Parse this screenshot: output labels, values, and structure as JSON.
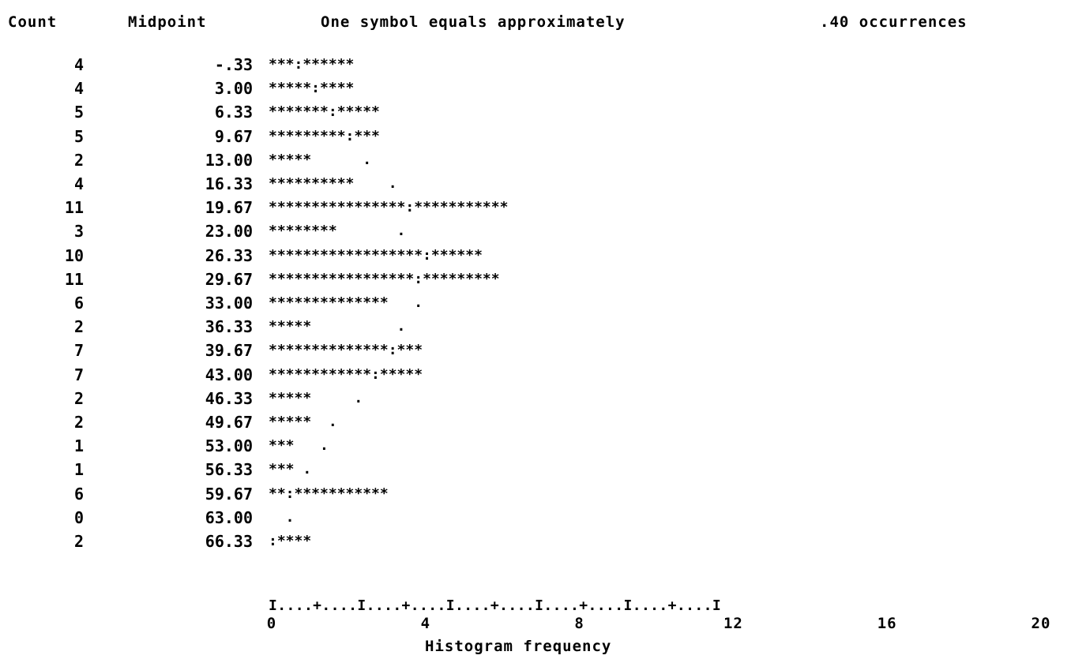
{
  "header": {
    "count_label": "Count",
    "midpoint_label": "Midpoint",
    "scale_text": "One symbol equals approximately",
    "scale_value": ".40 occurrences"
  },
  "chart_data": {
    "type": "bar",
    "orientation": "horizontal",
    "xlabel": "Histogram frequency",
    "xlim": [
      0,
      20
    ],
    "x_ticks": [
      "0",
      "4",
      "8",
      "12",
      "16",
      "20"
    ],
    "axis_text": "I....+....I....+....I....+....I....+....I....+....I",
    "categories": [
      "-.33",
      "3.00",
      "6.33",
      "9.67",
      "13.00",
      "16.33",
      "19.67",
      "23.00",
      "26.33",
      "29.67",
      "33.00",
      "36.33",
      "39.67",
      "43.00",
      "46.33",
      "49.67",
      "53.00",
      "56.33",
      "59.67",
      "63.00",
      "66.33"
    ],
    "values": [
      4,
      4,
      5,
      5,
      2,
      4,
      11,
      3,
      10,
      11,
      6,
      2,
      7,
      7,
      2,
      2,
      1,
      1,
      6,
      0,
      2
    ],
    "bar_text": [
      "***:******",
      "*****:****",
      "*******:*****",
      "*********:***",
      "*****      .",
      "**********    .",
      "****************:***********",
      "********       .",
      "******************:******",
      "*****************:*********",
      "**************   .",
      "*****          .",
      "**************:***",
      "************:*****",
      "*****     .",
      "*****  .",
      "***   .",
      "*** .",
      "**:***********",
      "  .",
      ":****"
    ]
  }
}
